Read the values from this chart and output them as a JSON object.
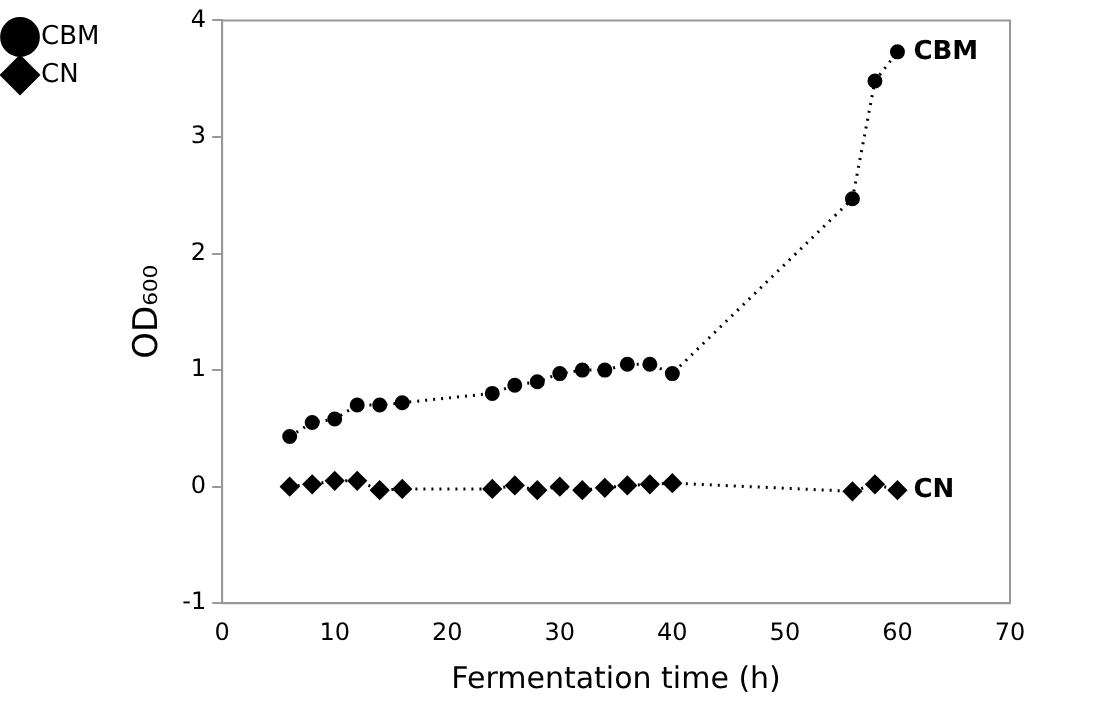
{
  "chart_data": {
    "type": "line",
    "xlabel": "Fermentation time (h)",
    "ylabel": "OD₆₀₀",
    "xlim": [
      0,
      70
    ],
    "xticks": [
      0,
      10,
      20,
      30,
      40,
      50,
      60,
      70
    ],
    "ylim": [
      -1,
      4
    ],
    "yticks": [
      -1,
      0,
      1,
      2,
      3,
      4
    ],
    "x": [
      6,
      8,
      10,
      12,
      14,
      16,
      24,
      26,
      28,
      30,
      32,
      34,
      36,
      38,
      40,
      56,
      58,
      60
    ],
    "series": [
      {
        "name": "CBM",
        "color": "#000000",
        "marker": "circle",
        "values": [
          0.43,
          0.55,
          0.58,
          0.7,
          0.7,
          0.72,
          0.8,
          0.87,
          0.9,
          0.97,
          1.0,
          1.0,
          1.05,
          1.05,
          0.97,
          2.47,
          3.48,
          3.73
        ]
      },
      {
        "name": "CN",
        "color": "#000000",
        "marker": "diamond",
        "values": [
          0,
          0.02,
          0.05,
          0.05,
          -0.03,
          -0.02,
          -0.02,
          0.01,
          -0.03,
          0,
          -0.03,
          -0.01,
          0.01,
          0.02,
          0.03,
          -0.04,
          0.02,
          -0.03
        ]
      }
    ],
    "line_style": "dotted",
    "grid": false,
    "legend": "top left"
  }
}
